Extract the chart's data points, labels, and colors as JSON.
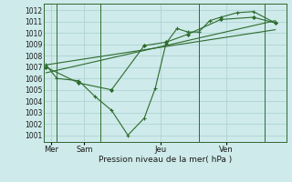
{
  "bg_color": "#ceeaea",
  "grid_color": "#aed4d4",
  "line_color": "#2d6b2d",
  "marker_color": "#2d6b2d",
  "xlabel": "Pression niveau de la mer( hPa )",
  "ylim": [
    1000.4,
    1012.6
  ],
  "yticks": [
    1001,
    1002,
    1003,
    1004,
    1005,
    1006,
    1007,
    1008,
    1009,
    1010,
    1011,
    1012
  ],
  "day_labels": [
    "Mer",
    "Sam",
    "Jeu",
    "Ven"
  ],
  "day_positions": [
    0.5,
    3.5,
    10.5,
    16.5
  ],
  "vline_x": [
    1,
    5,
    14,
    20
  ],
  "xlim": [
    -0.2,
    22
  ],
  "series1_x": [
    0.0,
    1.0,
    3.0,
    4.5,
    6.0,
    7.5,
    9.0,
    10.0,
    11.0,
    12.0,
    13.0,
    14.0,
    15.0,
    16.0,
    17.5,
    19.0,
    21.0
  ],
  "series1_y": [
    1007.2,
    1006.0,
    1005.8,
    1004.4,
    1003.2,
    1001.0,
    1002.5,
    1005.1,
    1009.1,
    1010.4,
    1010.1,
    1010.1,
    1011.1,
    1011.4,
    1011.8,
    1011.9,
    1010.9
  ],
  "series2_x": [
    0.0,
    3.0,
    6.0,
    9.0,
    11.0,
    13.0,
    16.0,
    19.0,
    21.0
  ],
  "series2_y": [
    1007.0,
    1005.6,
    1005.0,
    1008.9,
    1009.2,
    1009.9,
    1011.2,
    1011.4,
    1010.9
  ],
  "trend1_x": [
    0.0,
    21.0
  ],
  "trend1_y": [
    1007.2,
    1010.3
  ],
  "trend2_x": [
    0.0,
    21.0
  ],
  "trend2_y": [
    1006.5,
    1011.1
  ]
}
